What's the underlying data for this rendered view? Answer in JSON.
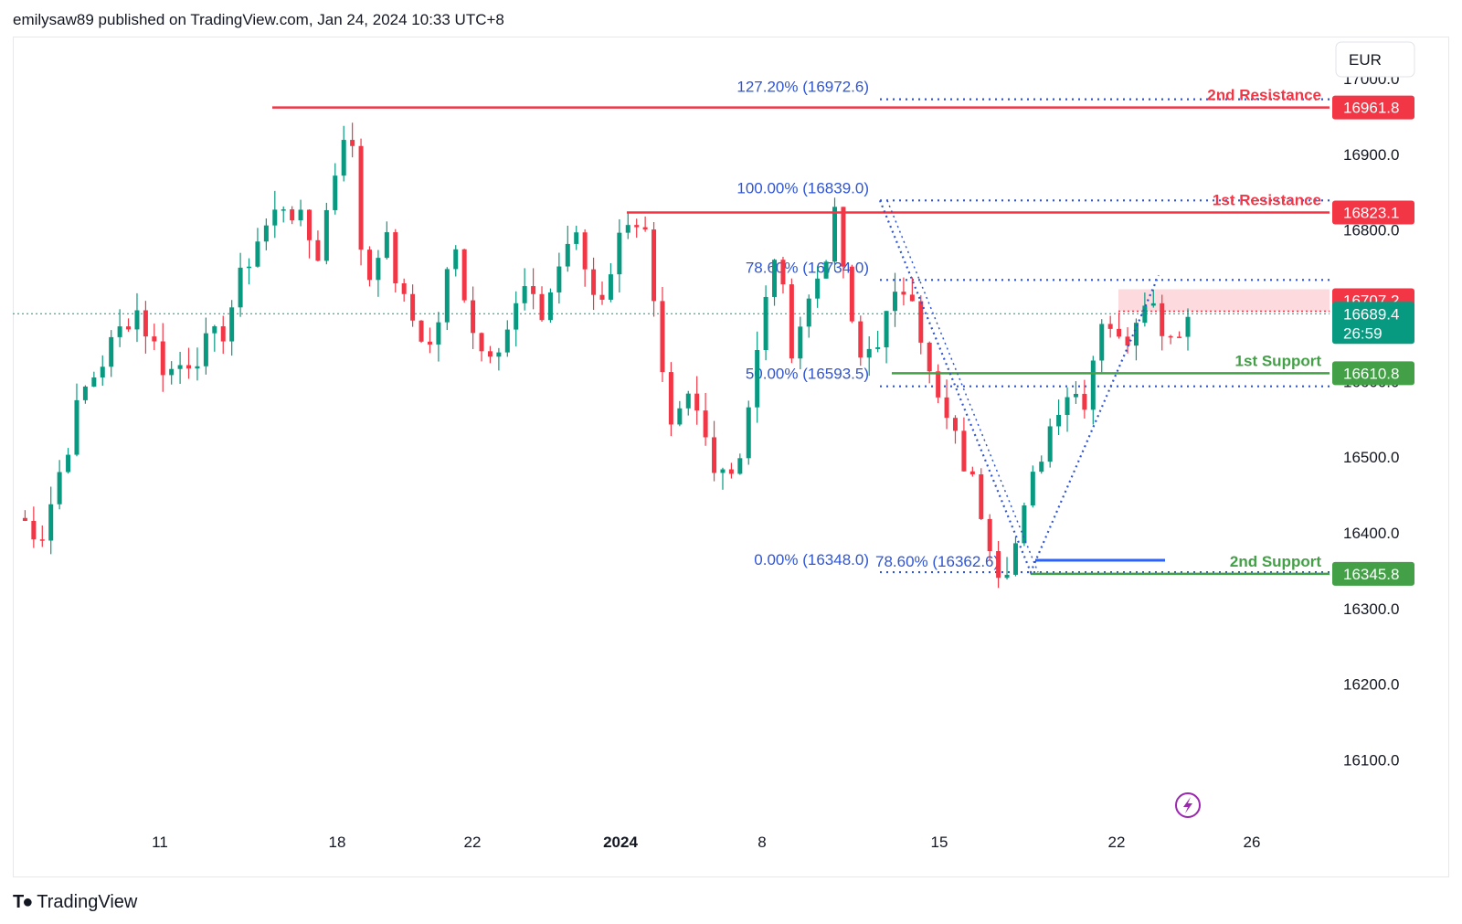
{
  "header": {
    "published": "emilysaw89 published on TradingView.com, Jan 24, 2024 10:33 UTC+8"
  },
  "footer": {
    "brand": "TradingView",
    "logo_icon": "tradingview-logo-icon"
  },
  "currency_button": "EUR",
  "colors": {
    "up": "#089981",
    "down": "#f23645",
    "fib": "#2f55d4",
    "support": "#43a047",
    "resistance": "#f23645"
  },
  "chart_data": {
    "type": "candlestick",
    "currency": "EUR",
    "ylim": [
      16050,
      17050
    ],
    "y_ticks": [
      "16100.0",
      "16200.0",
      "16300.0",
      "16400.0",
      "16500.0",
      "16600.0",
      "16700.0",
      "16800.0",
      "16900.0",
      "17000.0"
    ],
    "x_ticks": [
      "11",
      "18",
      "22",
      "2024",
      "8",
      "15",
      "22",
      "26"
    ],
    "last_price": "16689.4",
    "countdown": "26:59",
    "levels": [
      {
        "label": "2nd Resistance",
        "price": 16961.8,
        "tag": "16961.8",
        "kind": "resistance"
      },
      {
        "label": "1st Resistance",
        "price": 16823.1,
        "tag": "16823.1",
        "kind": "resistance"
      },
      {
        "label": "1st Support",
        "price": 16610.8,
        "tag": "16610.8",
        "kind": "support"
      },
      {
        "label": "2nd Support",
        "price": 16345.8,
        "tag": "16345.8",
        "kind": "support"
      }
    ],
    "zone_tag": "16707.2",
    "fibonacci": [
      {
        "label": "127.20% (16972.6)",
        "price": 16972.6
      },
      {
        "label": "100.00% (16839.0)",
        "price": 16839.0
      },
      {
        "label": "78.60% (16734.0)",
        "price": 16734.0
      },
      {
        "label": "50.00% (16593.5)",
        "price": 16593.5
      },
      {
        "label": "0.00% (16348.0)",
        "price": 16348.0
      }
    ],
    "fib_retracement_label": {
      "label": "78.60% (16362.6)",
      "price": 16362.6
    },
    "anchors": [
      {
        "x": 0.0,
        "y": 16420
      },
      {
        "x": 1.2,
        "y": 16400
      },
      {
        "x": 3,
        "y": 16580
      },
      {
        "x": 5.5,
        "y": 16700
      },
      {
        "x": 7,
        "y": 16610
      },
      {
        "x": 9.5,
        "y": 16660
      },
      {
        "x": 11,
        "y": 16780
      },
      {
        "x": 12.5,
        "y": 16840
      },
      {
        "x": 14,
        "y": 16770
      },
      {
        "x": 15.4,
        "y": 16960
      },
      {
        "x": 16.2,
        "y": 16720
      },
      {
        "x": 17,
        "y": 16800
      },
      {
        "x": 18,
        "y": 16700
      },
      {
        "x": 19.3,
        "y": 16640
      },
      {
        "x": 20.3,
        "y": 16780
      },
      {
        "x": 21.5,
        "y": 16640
      },
      {
        "x": 22.6,
        "y": 16660
      },
      {
        "x": 23.6,
        "y": 16720
      },
      {
        "x": 24.3,
        "y": 16680
      },
      {
        "x": 25.8,
        "y": 16800
      },
      {
        "x": 27,
        "y": 16700
      },
      {
        "x": 28.5,
        "y": 16830
      },
      {
        "x": 29.2,
        "y": 16790
      },
      {
        "x": 30.3,
        "y": 16520
      },
      {
        "x": 31.3,
        "y": 16580
      },
      {
        "x": 32.3,
        "y": 16500
      },
      {
        "x": 33.4,
        "y": 16480
      },
      {
        "x": 34.2,
        "y": 16600
      },
      {
        "x": 35.2,
        "y": 16770
      },
      {
        "x": 36,
        "y": 16650
      },
      {
        "x": 37,
        "y": 16720
      },
      {
        "x": 38.1,
        "y": 16820
      },
      {
        "x": 39,
        "y": 16620
      },
      {
        "x": 40,
        "y": 16660
      },
      {
        "x": 41.5,
        "y": 16740
      },
      {
        "x": 42.5,
        "y": 16590
      },
      {
        "x": 43.6,
        "y": 16520
      },
      {
        "x": 44.6,
        "y": 16450
      },
      {
        "x": 45.7,
        "y": 16348
      },
      {
        "x": 46.5,
        "y": 16390
      },
      {
        "x": 47.5,
        "y": 16500
      },
      {
        "x": 48.6,
        "y": 16590
      },
      {
        "x": 49.6,
        "y": 16580
      },
      {
        "x": 50.5,
        "y": 16700
      },
      {
        "x": 51.3,
        "y": 16640
      },
      {
        "x": 52.4,
        "y": 16720
      },
      {
        "x": 53.5,
        "y": 16660
      },
      {
        "x": 54.5,
        "y": 16689
      }
    ]
  }
}
